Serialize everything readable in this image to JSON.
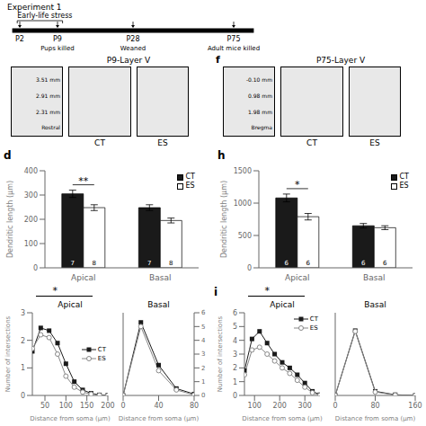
{
  "chart_data": [
    {
      "type": "timeline",
      "title": "Experiment 1",
      "annotations": [
        "Early-life stress"
      ],
      "categories": [
        "P2",
        "P9",
        "P28",
        "P75"
      ],
      "labels": [
        null,
        "Pups killed",
        "Weaned",
        "Adult mice killed"
      ]
    },
    {
      "type": "image",
      "title": "P9-Layer V",
      "annotations": [
        "3.51 mm",
        "2.91 mm",
        "2.31 mm",
        "Rostral"
      ],
      "categories": [
        "CT",
        "ES"
      ]
    },
    {
      "type": "bar",
      "title": "d",
      "categories": [
        "Apical",
        "Basal"
      ],
      "ylabel": "Dendritic length (μm)",
      "ylim": [
        0,
        400
      ],
      "yticks": [
        0,
        100,
        200,
        300,
        400
      ],
      "legend": "upper right",
      "grid": false,
      "annotations": [
        "**"
      ],
      "series": [
        {
          "name": "CT",
          "color": "#1a1a1a",
          "values": [
            305,
            248
          ],
          "errors": [
            15,
            12
          ],
          "n": [
            7,
            7
          ]
        },
        {
          "name": "ES",
          "color": "#ffffff",
          "values": [
            248,
            195
          ],
          "errors": [
            12,
            10
          ],
          "n": [
            8,
            8
          ]
        }
      ]
    },
    {
      "type": "image",
      "title": "P75-Layer V",
      "label": "f",
      "annotations": [
        "-0.10 mm",
        "0.98 mm",
        "1.98 mm",
        "Bregma"
      ],
      "categories": [
        "CT",
        "ES"
      ]
    },
    {
      "type": "bar",
      "title": "h",
      "categories": [
        "Apical",
        "Basal"
      ],
      "ylabel": "Dendritic length (μm)",
      "ylim": [
        0,
        1500
      ],
      "yticks": [
        0,
        500,
        1000,
        1500
      ],
      "legend": "upper right",
      "grid": false,
      "annotations": [
        "*"
      ],
      "series": [
        {
          "name": "CT",
          "color": "#1a1a1a",
          "values": [
            1080,
            650
          ],
          "errors": [
            60,
            35
          ],
          "n": [
            6,
            6
          ]
        },
        {
          "name": "ES",
          "color": "#ffffff",
          "values": [
            790,
            620
          ],
          "errors": [
            50,
            30
          ],
          "n": [
            6,
            6
          ]
        }
      ]
    },
    {
      "type": "line",
      "title": "Apical",
      "x": [
        20,
        40,
        60,
        80,
        100,
        120,
        140,
        160,
        180,
        200
      ],
      "xlabel": "Distance from soma (μm)",
      "ylabel": "Number of intersections",
      "xlim": [
        20,
        200
      ],
      "xticks": [
        50,
        100,
        150,
        200
      ],
      "ylim": [
        0,
        3
      ],
      "yticks": [
        0,
        1,
        2,
        3
      ],
      "legend": "center right",
      "grid": false,
      "annotations": [
        "*"
      ],
      "series": [
        {
          "name": "CT",
          "color": "#1a1a1a",
          "marker": "square",
          "values": [
            1.6,
            2.45,
            2.35,
            1.9,
            1.15,
            0.5,
            0.2,
            0.08,
            0.02,
            0.01
          ]
        },
        {
          "name": "ES",
          "color": "#888888",
          "marker": "circle",
          "values": [
            1.7,
            2.2,
            2.1,
            1.5,
            0.7,
            0.3,
            0.12,
            0.05,
            0.01,
            0.0
          ]
        }
      ]
    },
    {
      "type": "line",
      "title": "Basal",
      "x": [
        0,
        20,
        40,
        60,
        80
      ],
      "xlabel": "Distance from soma (μm)",
      "xlim": [
        0,
        80
      ],
      "xticks": [
        0,
        40,
        80
      ],
      "ylim": [
        0,
        3
      ],
      "yticks": [],
      "y2lim": [
        0,
        6
      ],
      "y2ticks": [
        0,
        1,
        2,
        3,
        4,
        5,
        6
      ],
      "grid": false,
      "series": [
        {
          "name": "CT",
          "color": "#1a1a1a",
          "marker": "square",
          "values": [
            0,
            2.65,
            1.1,
            0.25,
            0.05
          ]
        },
        {
          "name": "ES",
          "color": "#888888",
          "marker": "circle",
          "values": [
            0,
            2.5,
            0.9,
            0.2,
            0.02
          ]
        }
      ]
    },
    {
      "type": "line",
      "title": "Apical",
      "label": "i",
      "x": [
        60,
        90,
        120,
        150,
        180,
        210,
        240,
        270,
        300,
        330,
        360
      ],
      "xlabel": "Distance from soma (μm)",
      "ylabel": "Number of intersections",
      "xlim": [
        60,
        360
      ],
      "xticks": [
        100,
        200,
        300
      ],
      "ylim": [
        0,
        6
      ],
      "yticks": [
        0,
        1,
        2,
        3,
        4,
        5,
        6
      ],
      "legend": "upper right",
      "grid": false,
      "annotations": [
        "*"
      ],
      "series": [
        {
          "name": "CT",
          "color": "#1a1a1a",
          "marker": "square",
          "values": [
            1.8,
            4.1,
            4.65,
            3.8,
            3.0,
            2.4,
            2.0,
            1.5,
            0.9,
            0.3,
            0.05
          ]
        },
        {
          "name": "ES",
          "color": "#888888",
          "marker": "circle",
          "values": [
            1.5,
            3.3,
            3.5,
            3.0,
            2.5,
            2.0,
            1.6,
            1.1,
            0.6,
            0.2,
            0.02
          ]
        }
      ]
    },
    {
      "type": "line",
      "title": "Basal",
      "x": [
        0,
        40,
        80,
        120,
        160
      ],
      "xlabel": "Distance from soma (μm)",
      "xlim": [
        0,
        160
      ],
      "xticks": [
        0,
        80,
        160
      ],
      "ylim": [
        0,
        6
      ],
      "yticks": [],
      "grid": false,
      "series": [
        {
          "name": "CT",
          "color": "#1a1a1a",
          "marker": "square",
          "values": [
            0,
            4.7,
            0.3,
            0.05,
            0.0
          ]
        },
        {
          "name": "ES",
          "color": "#888888",
          "marker": "circle",
          "values": [
            0,
            4.65,
            0.25,
            0.03,
            0.0
          ]
        }
      ]
    }
  ]
}
